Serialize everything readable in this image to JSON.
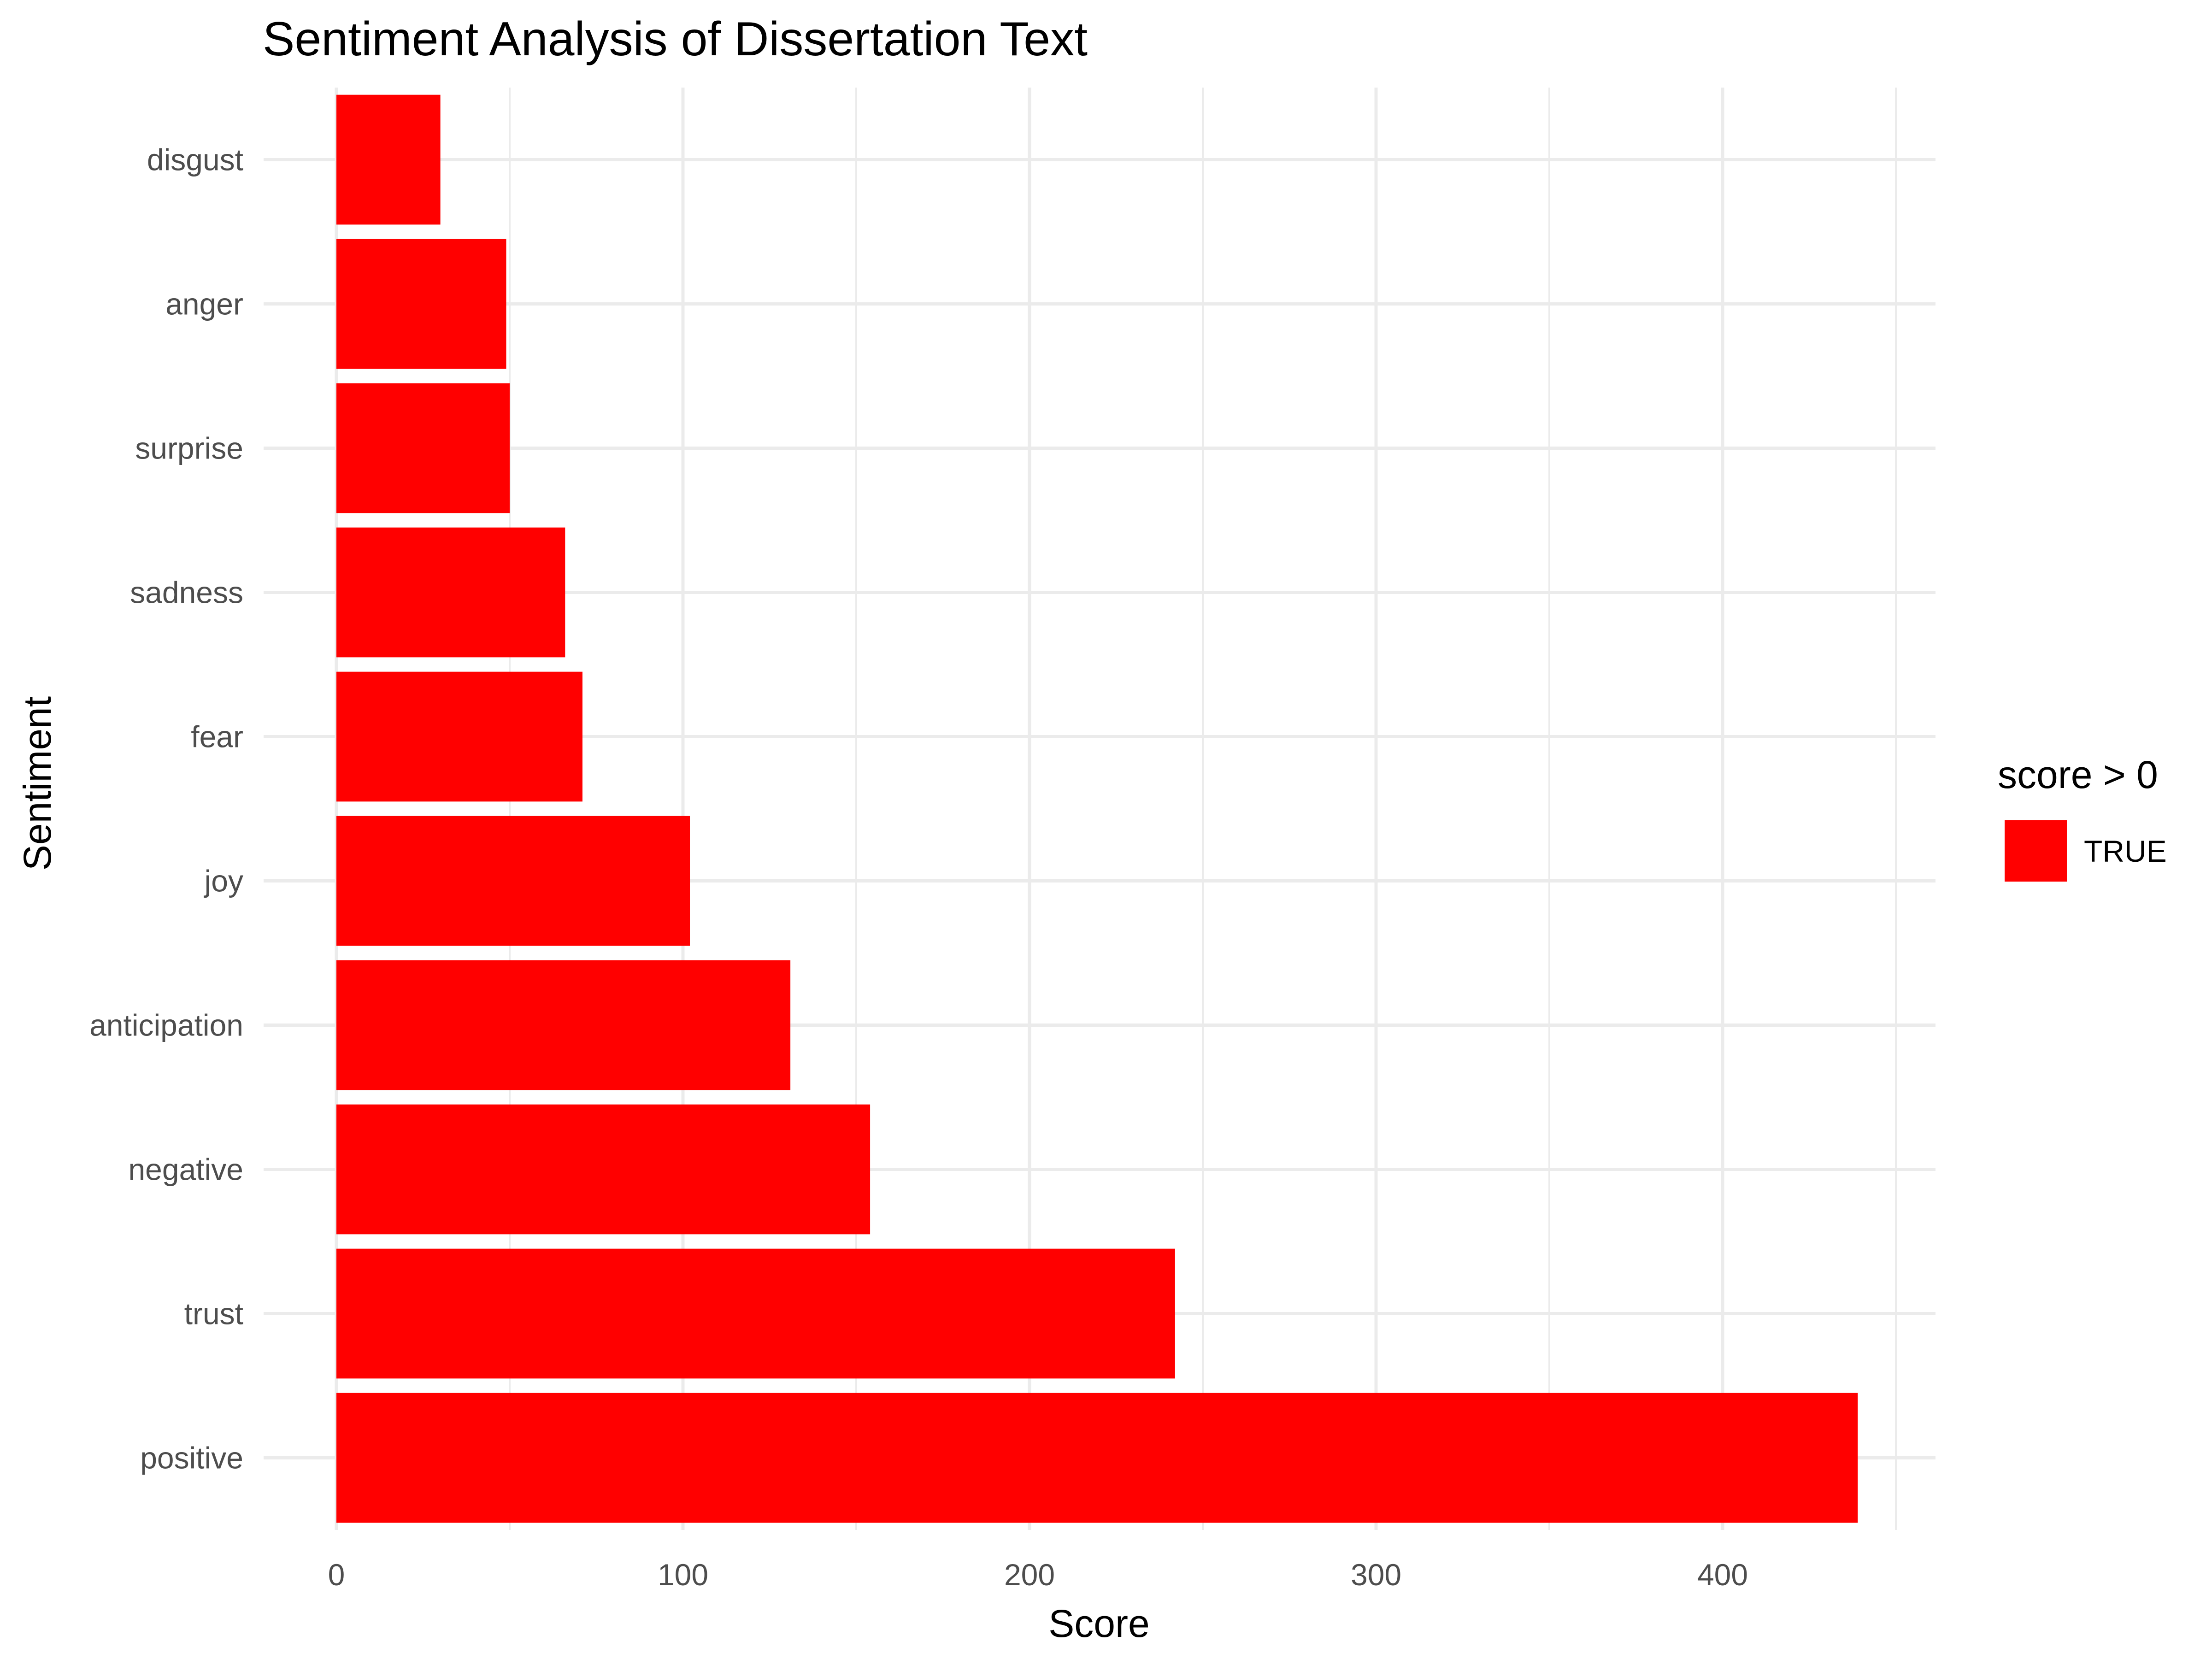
{
  "chart_data": {
    "type": "bar",
    "orientation": "horizontal",
    "title": "Sentiment Analysis of Dissertation Text",
    "xlabel": "Score",
    "ylabel": "Sentiment",
    "categories": [
      "disgust",
      "anger",
      "surprise",
      "sadness",
      "fear",
      "joy",
      "anticipation",
      "negative",
      "trust",
      "positive"
    ],
    "values": [
      30,
      49,
      50,
      66,
      71,
      102,
      131,
      154,
      242,
      439
    ],
    "xlim": [
      0,
      450
    ],
    "xticks": [
      "0",
      "100",
      "200",
      "300",
      "400"
    ],
    "grid": true,
    "legend": {
      "title": "score > 0",
      "position": "right",
      "entries": [
        {
          "label": "TRUE",
          "color": "#ff0000"
        }
      ]
    },
    "bar_color": "#ff0000"
  }
}
